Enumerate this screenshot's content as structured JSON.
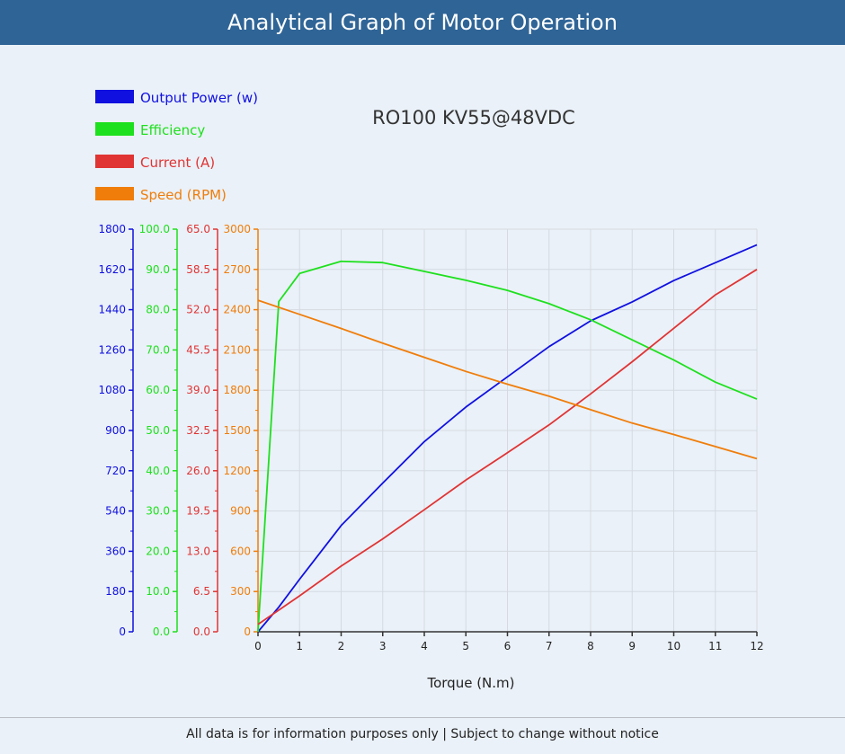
{
  "header": {
    "title": "Analytical Graph of Motor Operation"
  },
  "footer": {
    "note": "All data is for information purposes only | Subject to change without notice"
  },
  "chart_data": {
    "type": "line",
    "title": "RO100 KV55@48VDC",
    "xlabel": "Torque (N.m)",
    "x_ticks": [
      0,
      1,
      2,
      3,
      4,
      5,
      6,
      7,
      8,
      9,
      10,
      11,
      12
    ],
    "xlim": [
      0,
      12
    ],
    "grid": true,
    "legend_position": "top-left",
    "axes": [
      {
        "id": "power",
        "color": "#1010e0",
        "range": [
          0,
          1800
        ],
        "ticks": [
          "0",
          "180",
          "360",
          "540",
          "720",
          "900",
          "1080",
          "1260",
          "1440",
          "1620",
          "1800"
        ]
      },
      {
        "id": "efficiency",
        "color": "#1ee01e",
        "range": [
          0,
          100
        ],
        "ticks": [
          "0.0",
          "10.0",
          "20.0",
          "30.0",
          "40.0",
          "50.0",
          "60.0",
          "70.0",
          "80.0",
          "90.0",
          "100.0"
        ]
      },
      {
        "id": "current",
        "color": "#e03434",
        "range": [
          0,
          65
        ],
        "ticks": [
          "0.0",
          "6.5",
          "13.0",
          "19.5",
          "26.0",
          "32.5",
          "39.0",
          "45.5",
          "52.0",
          "58.5",
          "65.0"
        ]
      },
      {
        "id": "speed",
        "color": "#f07d0a",
        "range": [
          0,
          3000
        ],
        "ticks": [
          "0",
          "300",
          "600",
          "900",
          "1200",
          "1500",
          "1800",
          "2100",
          "2400",
          "2700",
          "3000"
        ]
      }
    ],
    "series": [
      {
        "name": "Output Power (w)",
        "axis": "power",
        "color": "#1010e0",
        "x": [
          0,
          0.5,
          1,
          2,
          3,
          4,
          5,
          6,
          7,
          8,
          9,
          10,
          11,
          12
        ],
        "values": [
          0,
          110,
          235,
          475,
          665,
          850,
          1005,
          1140,
          1275,
          1390,
          1475,
          1570,
          1650,
          1730
        ]
      },
      {
        "name": "Efficiency",
        "axis": "efficiency",
        "color": "#1ee01e",
        "x": [
          0,
          0.5,
          1,
          2,
          3,
          4,
          5,
          6,
          7,
          8,
          9,
          10,
          11,
          12
        ],
        "values": [
          0,
          82,
          89,
          92,
          91.7,
          89.5,
          87.3,
          84.8,
          81.5,
          77.5,
          72.5,
          67.5,
          62,
          57.8
        ]
      },
      {
        "name": "Current (A)",
        "axis": "current",
        "color": "#e03434",
        "x": [
          0,
          1,
          2,
          3,
          4,
          5,
          6,
          7,
          8,
          9,
          10,
          11,
          12
        ],
        "values": [
          1.2,
          5.8,
          10.6,
          15,
          19.7,
          24.5,
          28.9,
          33.4,
          38.4,
          43.6,
          49,
          54.4,
          58.5
        ]
      },
      {
        "name": "Speed (RPM)",
        "axis": "speed",
        "color": "#f07d0a",
        "x": [
          0,
          1,
          2,
          3,
          4,
          5,
          6,
          7,
          8,
          9,
          10,
          11,
          12
        ],
        "values": [
          2470,
          2365,
          2260,
          2150,
          2045,
          1940,
          1845,
          1755,
          1655,
          1555,
          1470,
          1380,
          1290
        ]
      }
    ]
  }
}
